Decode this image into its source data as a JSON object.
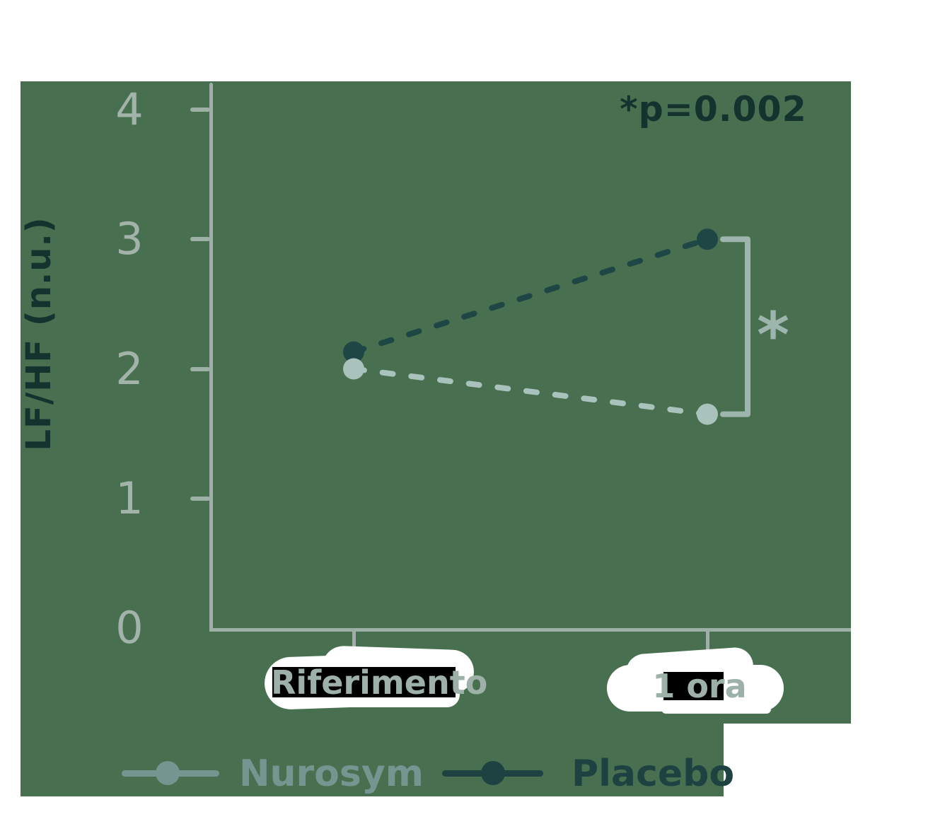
{
  "chart_data": {
    "type": "line",
    "title": "",
    "xlabel": "",
    "ylabel": "LF/HF (n.u.)",
    "categories": [
      "Riferimento",
      "1 ora"
    ],
    "series": [
      {
        "name": "Nurosym",
        "values": [
          2.0,
          1.65
        ],
        "color": "#A9C2BC",
        "legend_color": "#759690",
        "style": "dashed"
      },
      {
        "name": "Placebo",
        "values": [
          2.13,
          3.0
        ],
        "color": "#1E4644",
        "legend_color": "#1E4241",
        "style": "dashed"
      }
    ],
    "ylim": [
      0,
      4
    ],
    "yticks": [
      0,
      1,
      2,
      3,
      4
    ],
    "grid": false,
    "legend_position": "bottom",
    "annotation": "*p=0.002",
    "significance_marker": "*",
    "significance_bracket": {
      "category": "1 ora",
      "between": [
        "Placebo",
        "Nurosym"
      ]
    }
  },
  "colors": {
    "page_bg": "#FFFFFF",
    "panel_bg": "#486F50",
    "axis": "#9DB0A5",
    "tick_label": "#A2B3A9",
    "dark_text": "#14332E",
    "bracket": "#9DB5AC",
    "label_highlight": "#000000",
    "label_text": "#9DB1A8"
  }
}
